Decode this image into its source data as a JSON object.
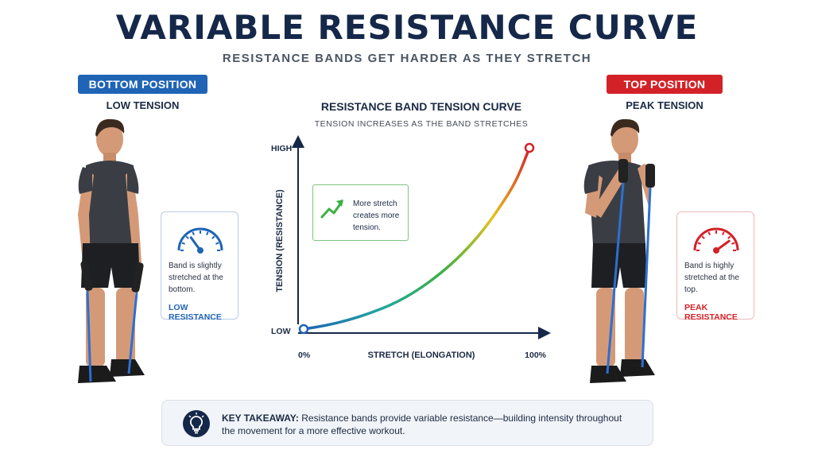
{
  "header": {
    "title": "VARIABLE RESISTANCE CURVE",
    "subtitle": "RESISTANCE BANDS GET HARDER AS THEY STRETCH"
  },
  "bottom_position": {
    "badge": "BOTTOM POSITION",
    "caption": "LOW TENSION",
    "card_text": "Band is slightly stretched at the bottom.",
    "card_label": "LOW RESISTANCE",
    "gauge_level": 0.3,
    "color": "#1f64b5"
  },
  "top_position": {
    "badge": "TOP POSITION",
    "caption": "PEAK TENSION",
    "card_text": "Band is highly stretched at the top.",
    "card_label": "PEAK RESISTANCE",
    "gauge_level": 0.8,
    "color": "#d32128"
  },
  "chart_panel": {
    "title": "RESISTANCE BAND TENSION CURVE",
    "subtitle": "TENSION INCREASES AS THE BAND STRETCHES",
    "callout_text": "More stretch creates more tension.",
    "callout_icon": "trend-up-arrow-icon"
  },
  "chart_data": {
    "type": "line",
    "xlabel": "STRETCH (ELONGATION)",
    "ylabel": "TENSION (RESISTANCE)",
    "x_tick_labels": [
      "0%",
      "100%"
    ],
    "y_tick_labels": [
      "LOW",
      "HIGH"
    ],
    "xlim": [
      0,
      100
    ],
    "ylim": [
      0,
      100
    ],
    "grid": false,
    "x": [
      0,
      10,
      20,
      30,
      40,
      50,
      60,
      70,
      80,
      90,
      95,
      100
    ],
    "y": [
      0,
      2,
      5,
      9,
      14,
      21,
      30,
      41,
      55,
      73,
      84,
      100
    ],
    "gradient_colors": [
      "#1f64b5",
      "#23a6a0",
      "#3cb043",
      "#e8c21c",
      "#d32128"
    ]
  },
  "takeaway": {
    "label": "KEY TAKEAWAY:",
    "text": " Resistance bands provide variable resistance—building intensity throughout the movement for a more effective workout.",
    "icon": "lightbulb-icon"
  }
}
